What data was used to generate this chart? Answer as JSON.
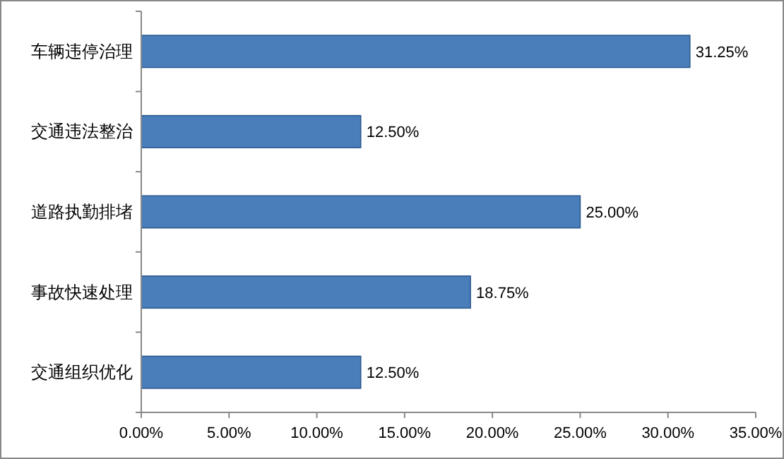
{
  "chart_data": {
    "type": "bar",
    "orientation": "horizontal",
    "categories": [
      "车辆违停治理",
      "交通违法整治",
      "道路执勤排堵",
      "事故快速处理",
      "交通组织优化"
    ],
    "values": [
      31.25,
      12.5,
      25,
      18.75,
      12.5
    ],
    "value_labels": [
      "31.25%",
      "12.50%",
      "25.00%",
      "18.75%",
      "12.50%"
    ],
    "color": "#4a7ebb",
    "xlim": [
      0,
      35
    ],
    "xticks": [
      {
        "value": 0,
        "label": "0.00%"
      },
      {
        "value": 5,
        "label": "5.00%"
      },
      {
        "value": 10,
        "label": "10.00%"
      },
      {
        "value": 15,
        "label": "15.00%"
      },
      {
        "value": 20,
        "label": "20.00%"
      },
      {
        "value": 25,
        "label": "25.00%"
      },
      {
        "value": 30,
        "label": "30.00%"
      },
      {
        "value": 35,
        "label": "35.00%"
      }
    ],
    "grid": false
  }
}
